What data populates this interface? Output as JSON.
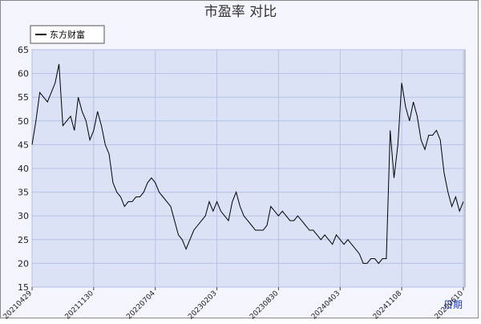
{
  "chart_data": {
    "type": "line",
    "title": "市盈率  对比",
    "x_label": "日期",
    "categories": [
      "20210429",
      null,
      null,
      null,
      null,
      null,
      null,
      null,
      null,
      null,
      null,
      null,
      null,
      null,
      null,
      null,
      "20211130",
      null,
      null,
      null,
      null,
      null,
      null,
      null,
      null,
      null,
      null,
      null,
      null,
      null,
      null,
      null,
      "20220704",
      null,
      null,
      null,
      null,
      null,
      null,
      null,
      null,
      null,
      null,
      null,
      null,
      null,
      null,
      null,
      "20230203",
      null,
      null,
      null,
      null,
      null,
      null,
      null,
      null,
      null,
      null,
      null,
      null,
      null,
      null,
      null,
      "20230830",
      null,
      null,
      null,
      null,
      null,
      null,
      null,
      null,
      null,
      null,
      null,
      null,
      null,
      null,
      null,
      "20240403",
      null,
      null,
      null,
      null,
      null,
      null,
      null,
      null,
      null,
      null,
      null,
      null,
      null,
      null,
      null,
      "20241108",
      null,
      null,
      null,
      null,
      null,
      null,
      null,
      null,
      null,
      null,
      null,
      null,
      null,
      null,
      null,
      "20250610"
    ],
    "series": [
      {
        "name": "东方财富",
        "color": "#000000",
        "values": [
          45,
          50,
          56,
          55,
          54,
          56,
          58,
          62,
          49,
          50,
          51,
          48,
          55,
          52,
          50,
          46,
          48,
          52,
          49,
          45,
          43,
          37,
          35,
          34,
          32,
          33,
          33,
          34,
          34,
          35,
          37,
          38,
          37,
          35,
          34,
          33,
          32,
          29,
          26,
          25,
          23,
          25,
          27,
          28,
          29,
          30,
          33,
          31,
          33,
          31,
          30,
          29,
          33,
          35,
          32,
          30,
          29,
          28,
          27,
          27,
          27,
          28,
          32,
          31,
          30,
          31,
          30,
          29,
          29,
          30,
          29,
          28,
          27,
          27,
          26,
          25,
          26,
          25,
          24,
          26,
          25,
          24,
          25,
          24,
          23,
          22,
          20,
          20,
          21,
          21,
          20,
          21,
          21,
          48,
          38,
          45,
          58,
          53,
          50,
          54,
          51,
          46,
          44,
          47,
          47,
          48,
          46,
          39,
          35,
          32,
          34,
          31,
          33
        ]
      }
    ],
    "ylim": [
      15,
      65
    ],
    "yticks": [
      15,
      20,
      25,
      30,
      35,
      40,
      45,
      50,
      55,
      60,
      65
    ],
    "grid": true,
    "legend": "top-left"
  }
}
